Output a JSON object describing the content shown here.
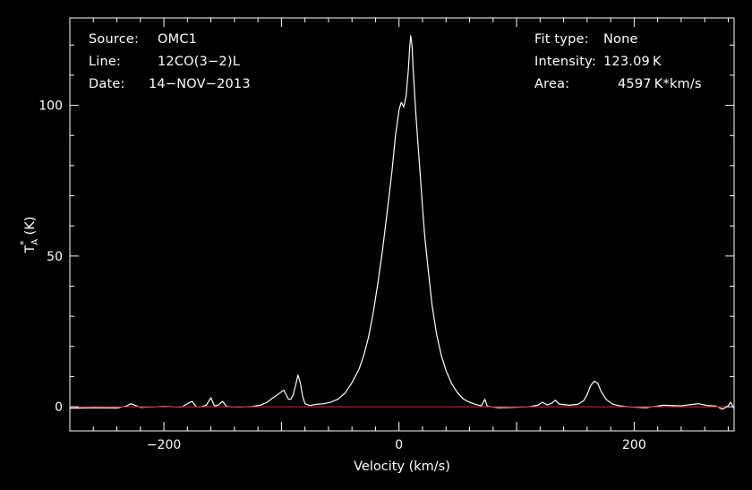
{
  "header": {
    "source_label": "Source:",
    "source_value": "OMC1",
    "line_label": "Line:",
    "line_value": "12CO(3−2)L",
    "date_label": "Date:",
    "date_value": "14−NOV−2013",
    "fit_type_label": "Fit type:",
    "fit_type_value": "None",
    "intensity_label": "Intensity:",
    "intensity_value": "123.09 K",
    "area_label": "Area:",
    "area_value": "4597 K*km/s"
  },
  "chart_data": {
    "type": "line",
    "xlabel": "Velocity (km/s)",
    "ylabel": "T_A^* (K)",
    "ylabel_parts": {
      "main": "T",
      "sub": "A",
      "sup": "*",
      "unit": "(K)"
    },
    "xlim": [
      -280,
      285
    ],
    "ylim": [
      -8,
      129
    ],
    "x_ticks": [
      -200,
      0,
      200
    ],
    "x_tick_labels": [
      "−200",
      "0",
      "200"
    ],
    "y_ticks": [
      0,
      50,
      100
    ],
    "y_tick_labels": [
      "0",
      "50",
      "100"
    ],
    "grid": false,
    "colors": {
      "background": "#000000",
      "spectrum": "#ffffff",
      "baseline": "#c01818",
      "axes": "#ffffff"
    },
    "series": [
      {
        "style": "spectrum",
        "x": [
          -280,
          -260,
          -240,
          -232,
          -228,
          -220,
          -200,
          -185,
          -176,
          -173,
          -170,
          -164,
          -160,
          -157,
          -154,
          -150,
          -147,
          -144,
          -135,
          -125,
          -118,
          -112,
          -108,
          -104,
          -100,
          -98,
          -96,
          -94,
          -92,
          -90,
          -88,
          -86,
          -84,
          -82,
          -80,
          -76,
          -70,
          -64,
          -58,
          -52,
          -46,
          -40,
          -34,
          -30,
          -26,
          -22,
          -18,
          -14,
          -10,
          -6,
          -3,
          0,
          2,
          4,
          6,
          8,
          9,
          10,
          11,
          12,
          14,
          16,
          18,
          20,
          22,
          25,
          28,
          32,
          36,
          40,
          45,
          50,
          55,
          60,
          65,
          70,
          73,
          75,
          78,
          85,
          95,
          110,
          118,
          122,
          126,
          130,
          133,
          136,
          145,
          152,
          157,
          160,
          163,
          166,
          169,
          172,
          176,
          181,
          186,
          195,
          210,
          225,
          240,
          250,
          255,
          262,
          270,
          275,
          280,
          282,
          285
        ],
        "y": [
          -0.5,
          -0.3,
          -0.4,
          0.2,
          1.0,
          -0.2,
          0.1,
          -0.1,
          1.8,
          0.2,
          -0.1,
          0.5,
          3.0,
          0.3,
          0.5,
          1.8,
          0.2,
          0.0,
          -0.1,
          0.1,
          0.5,
          1.5,
          2.8,
          3.8,
          5.0,
          5.5,
          4.0,
          2.5,
          2.5,
          4.0,
          7.0,
          10.5,
          8.0,
          3.5,
          1.0,
          0.4,
          0.8,
          1.0,
          1.5,
          2.5,
          4.5,
          8.0,
          12.5,
          17.0,
          23.0,
          31.0,
          41.0,
          52.0,
          65.0,
          78.0,
          90.0,
          98.5,
          101.0,
          99.5,
          103.0,
          112.0,
          118.5,
          123.09,
          120.0,
          112.0,
          99.0,
          88.0,
          77.0,
          66.0,
          56.0,
          45.0,
          34.0,
          24.0,
          17.0,
          12.0,
          7.5,
          4.5,
          2.5,
          1.5,
          0.8,
          0.3,
          2.5,
          0.2,
          0.0,
          -0.3,
          -0.2,
          0.0,
          0.5,
          1.5,
          0.6,
          1.2,
          2.2,
          0.9,
          0.5,
          0.8,
          2.0,
          4.0,
          7.0,
          8.5,
          7.8,
          5.0,
          2.5,
          1.0,
          0.4,
          0.0,
          -0.3,
          0.5,
          0.3,
          0.8,
          1.0,
          0.4,
          0.2,
          -0.8,
          0.3,
          1.5,
          -0.6
        ]
      },
      {
        "style": "baseline",
        "x": [
          -280,
          285
        ],
        "y": [
          0,
          0
        ]
      }
    ]
  }
}
